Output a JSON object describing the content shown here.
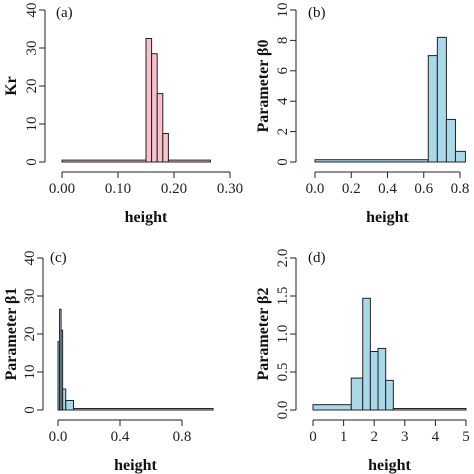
{
  "colors": {
    "pink": "#f7c1cc",
    "blue": "#a9d9e8",
    "edge": "#222222"
  },
  "chart_data": [
    {
      "type": "bar",
      "panel_label": "(a)",
      "xlabel": "height",
      "ylabel": "Kr",
      "xlim": [
        0,
        0.3
      ],
      "ylim": [
        0,
        40
      ],
      "xticks": [
        0,
        0.1,
        0.2,
        0.3
      ],
      "xtick_labels": [
        "0.00",
        "0.10",
        "0.20",
        "0.30"
      ],
      "yticks": [
        0,
        10,
        20,
        30,
        40
      ],
      "ytick_labels": [
        "0",
        "10",
        "20",
        "30",
        "40"
      ],
      "color": "pink",
      "bins": [
        {
          "x0": 0.0,
          "x1": 0.15,
          "value": 0.5
        },
        {
          "x0": 0.15,
          "x1": 0.16,
          "value": 32.5
        },
        {
          "x0": 0.16,
          "x1": 0.17,
          "value": 28.5
        },
        {
          "x0": 0.17,
          "x1": 0.18,
          "value": 18
        },
        {
          "x0": 0.18,
          "x1": 0.19,
          "value": 7.5
        },
        {
          "x0": 0.19,
          "x1": 0.265,
          "value": 0.5
        }
      ]
    },
    {
      "type": "bar",
      "panel_label": "(b)",
      "xlabel": "height",
      "ylabel": "Parameter β0",
      "xlim": [
        0,
        0.8
      ],
      "ylim": [
        0,
        10
      ],
      "xticks": [
        0,
        0.2,
        0.4,
        0.6,
        0.8
      ],
      "xtick_labels": [
        "0.0",
        "0.2",
        "0.4",
        "0.6",
        "0.8"
      ],
      "yticks": [
        0,
        2,
        4,
        6,
        8,
        10
      ],
      "ytick_labels": [
        "0",
        "2",
        "4",
        "6",
        "8",
        "10"
      ],
      "color": "blue",
      "bins": [
        {
          "x0": 0.0,
          "x1": 0.625,
          "value": 0.15
        },
        {
          "x0": 0.625,
          "x1": 0.675,
          "value": 7
        },
        {
          "x0": 0.675,
          "x1": 0.725,
          "value": 8.2
        },
        {
          "x0": 0.725,
          "x1": 0.775,
          "value": 2.8
        },
        {
          "x0": 0.775,
          "x1": 0.83,
          "value": 0.7
        }
      ]
    },
    {
      "type": "bar",
      "panel_label": "(c)",
      "xlabel": "height",
      "ylabel": "Parameter β1",
      "xlim": [
        0,
        1
      ],
      "ylim": [
        0,
        40
      ],
      "xticks": [
        0,
        0.4,
        0.8
      ],
      "xtick_labels": [
        "0.0",
        "0.4",
        "0.8"
      ],
      "yticks": [
        0,
        10,
        20,
        30,
        40
      ],
      "ytick_labels": [
        "0",
        "10",
        "20",
        "30",
        "40"
      ],
      "color": "blue",
      "bins": [
        {
          "x0": 0.0,
          "x1": 0.01,
          "value": 18
        },
        {
          "x0": 0.01,
          "x1": 0.02,
          "value": 26.5
        },
        {
          "x0": 0.02,
          "x1": 0.03,
          "value": 21
        },
        {
          "x0": 0.03,
          "x1": 0.05,
          "value": 5.5
        },
        {
          "x0": 0.05,
          "x1": 0.1,
          "value": 2.5
        },
        {
          "x0": 0.1,
          "x1": 1.0,
          "value": 0.4
        }
      ]
    },
    {
      "type": "bar",
      "panel_label": "(d)",
      "xlabel": "height",
      "ylabel": "Parameter β2",
      "xlim": [
        0,
        5
      ],
      "ylim": [
        0,
        2
      ],
      "xticks": [
        0,
        1,
        2,
        3,
        4,
        5
      ],
      "xtick_labels": [
        "0",
        "1",
        "2",
        "3",
        "4",
        "5"
      ],
      "yticks": [
        0,
        0.5,
        1,
        1.5,
        2
      ],
      "ytick_labels": [
        "0.0",
        "0.5",
        "1.0",
        "1.5",
        "2.0"
      ],
      "color": "blue",
      "bins": [
        {
          "x0": 0.0,
          "x1": 1.25,
          "value": 0.07
        },
        {
          "x0": 1.25,
          "x1": 1.625,
          "value": 0.42
        },
        {
          "x0": 1.625,
          "x1": 1.875,
          "value": 1.47
        },
        {
          "x0": 1.875,
          "x1": 2.125,
          "value": 0.77
        },
        {
          "x0": 2.125,
          "x1": 2.375,
          "value": 0.81
        },
        {
          "x0": 2.375,
          "x1": 2.625,
          "value": 0.39
        },
        {
          "x0": 2.625,
          "x1": 5.0,
          "value": 0.02
        }
      ]
    }
  ]
}
